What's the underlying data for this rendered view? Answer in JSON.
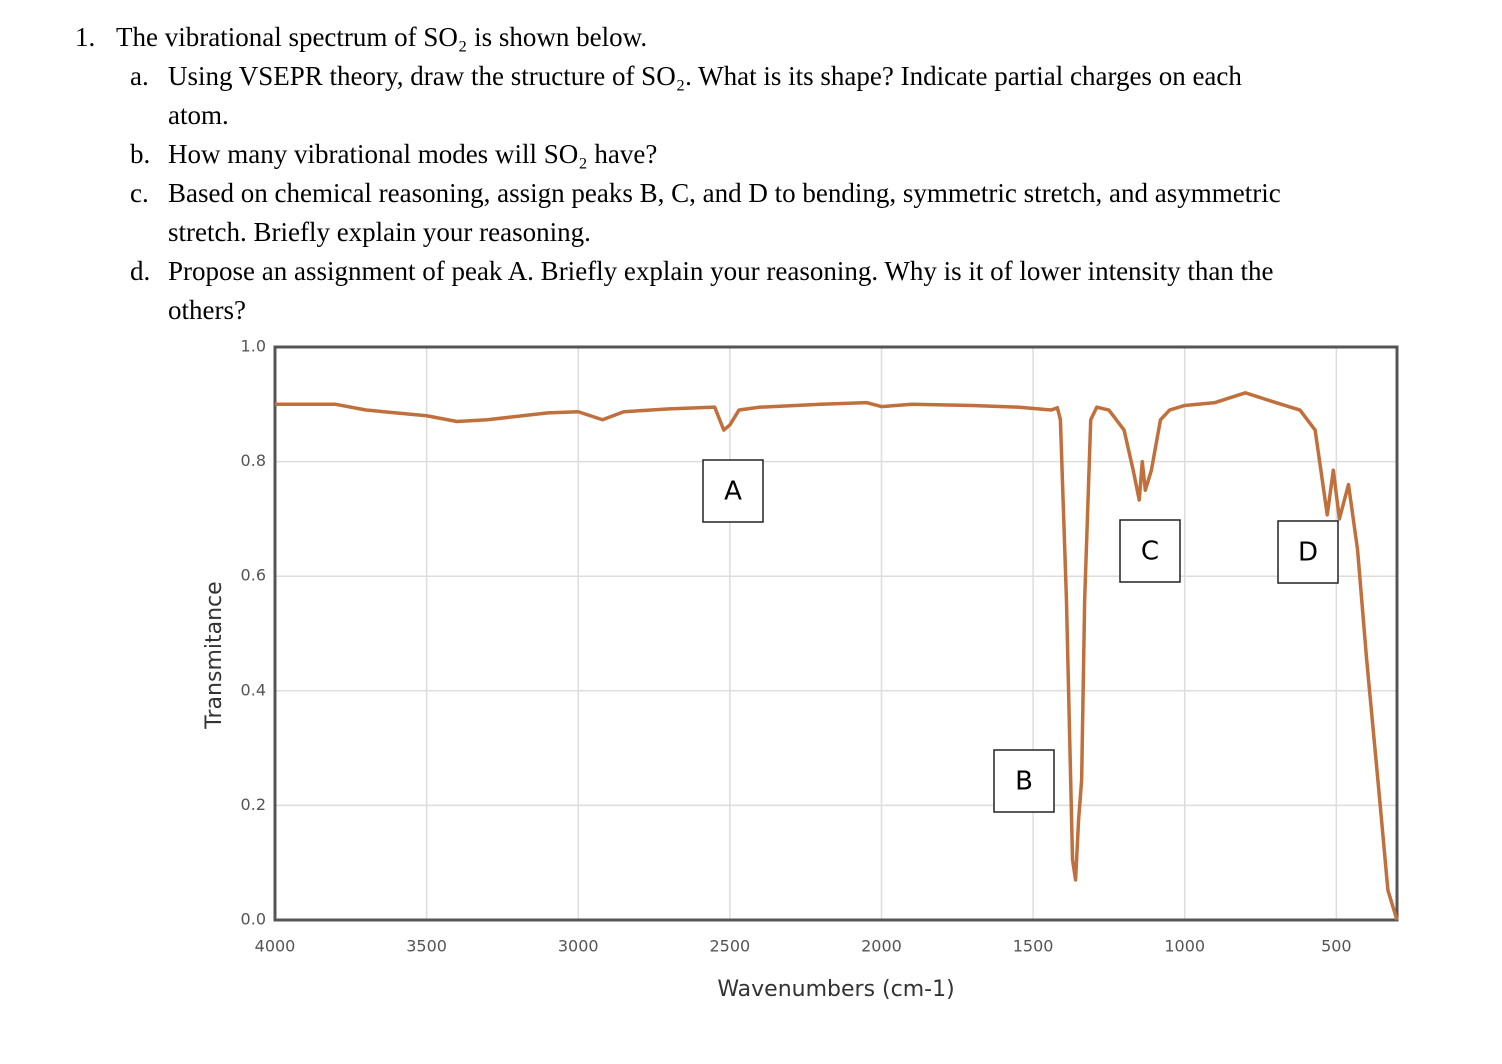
{
  "question": {
    "number": "1.",
    "text": "The vibrational spectrum of SO₂ is shown below.",
    "parts": [
      {
        "label": "a.",
        "text": "Using VSEPR theory, draw the structure of SO₂. What is its shape? Indicate partial charges on each atom."
      },
      {
        "label": "b.",
        "text": "How many vibrational modes will SO₂ have?"
      },
      {
        "label": "c.",
        "text": "Based on chemical reasoning, assign peaks B, C, and D to bending, symmetric stretch, and asymmetric stretch. Briefly explain your reasoning."
      },
      {
        "label": "d.",
        "text": "Propose an assignment of peak A. Briefly explain your reasoning. Why is it of lower intensity than the others?"
      }
    ]
  },
  "chart_data": {
    "type": "line",
    "x_label": "Wavenumbers (cm-1)",
    "y_label": "Transmitance",
    "x": [
      4000,
      3800,
      3700,
      3500,
      3400,
      3300,
      3100,
      3000,
      2920,
      2850,
      2700,
      2550,
      2520,
      2500,
      2470,
      2400,
      2200,
      2050,
      2000,
      1900,
      1700,
      1550,
      1440,
      1420,
      1410,
      1390,
      1370,
      1360,
      1350,
      1340,
      1330,
      1310,
      1290,
      1250,
      1200,
      1170,
      1150,
      1140,
      1130,
      1110,
      1080,
      1050,
      1000,
      900,
      800,
      700,
      620,
      570,
      530,
      510,
      490,
      460,
      430,
      400,
      360,
      330,
      300
    ],
    "series": [
      {
        "color": "#c0703c",
        "values": [
          0.9,
          0.9,
          0.89,
          0.88,
          0.87,
          0.873,
          0.885,
          0.887,
          0.873,
          0.887,
          0.892,
          0.895,
          0.855,
          0.864,
          0.89,
          0.895,
          0.9,
          0.903,
          0.896,
          0.9,
          0.898,
          0.895,
          0.89,
          0.894,
          0.873,
          0.558,
          0.105,
          0.07,
          0.175,
          0.244,
          0.558,
          0.873,
          0.895,
          0.89,
          0.855,
          0.785,
          0.733,
          0.8,
          0.75,
          0.785,
          0.873,
          0.89,
          0.898,
          0.903,
          0.92,
          0.903,
          0.89,
          0.855,
          0.707,
          0.785,
          0.7,
          0.76,
          0.646,
          0.454,
          0.227,
          0.052,
          0.0
        ]
      }
    ],
    "xlim": [
      4000,
      300
    ],
    "ylim": [
      0,
      1
    ],
    "xticks": [
      4000,
      3500,
      3000,
      2500,
      2000,
      1500,
      1000,
      500
    ],
    "yticks": [
      {
        "value": 0,
        "label": "0.0"
      },
      0.2,
      0.4,
      0.6,
      0.8,
      {
        "value": 1,
        "label": "1.0"
      }
    ],
    "grid": true,
    "annotations": [
      "A",
      "B",
      "C",
      "D"
    ]
  }
}
